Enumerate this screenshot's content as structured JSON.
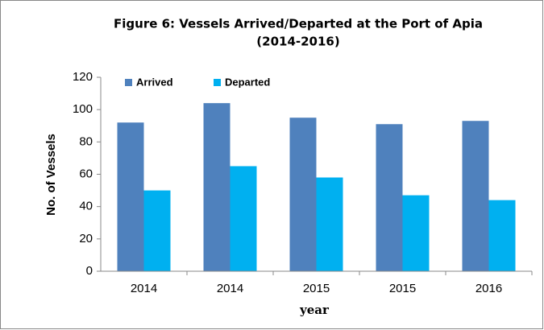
{
  "chart_data": {
    "type": "bar",
    "title": [
      "Figure 6: Vessels Arrived/Departed at the Port of Apia",
      "(2014-2016)"
    ],
    "x_label": "year",
    "y_label": "No. of Vessels",
    "categories": [
      "2014",
      "2014",
      "2015",
      "2015",
      "2016"
    ],
    "series": [
      {
        "name": "Arrived",
        "color": "#4f81bd",
        "values": [
          92,
          104,
          95,
          91,
          93
        ]
      },
      {
        "name": "Departed",
        "color": "#00b0f0",
        "values": [
          50,
          65,
          58,
          47,
          44
        ]
      }
    ],
    "ylim": [
      0,
      120
    ],
    "yticks": [
      0,
      20,
      40,
      60,
      80,
      100,
      120
    ],
    "grid": false,
    "legend": "top-left"
  }
}
